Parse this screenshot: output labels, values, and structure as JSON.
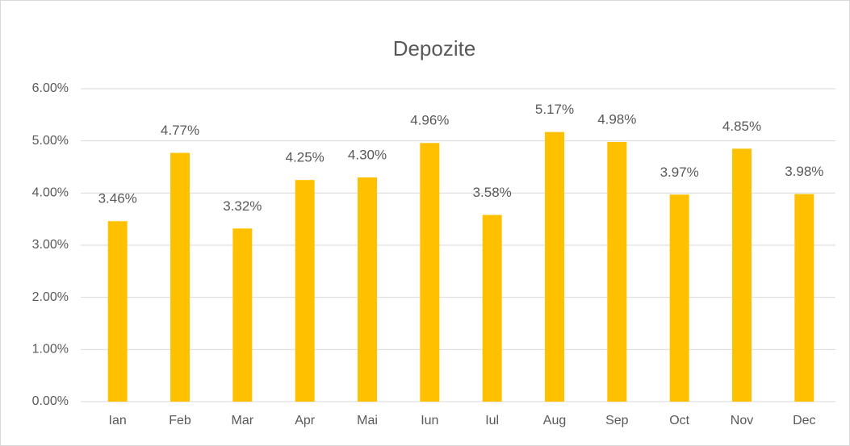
{
  "chart_data": {
    "type": "bar",
    "title": "Depozite",
    "categories": [
      "Ian",
      "Feb",
      "Mar",
      "Apr",
      "Mai",
      "Iun",
      "Iul",
      "Aug",
      "Sep",
      "Oct",
      "Nov",
      "Dec"
    ],
    "values": [
      3.46,
      4.77,
      3.32,
      4.25,
      4.3,
      4.96,
      3.58,
      5.17,
      4.98,
      3.97,
      4.85,
      3.98
    ],
    "value_labels": [
      "3.46%",
      "4.77%",
      "3.32%",
      "4.25%",
      "4.30%",
      "4.96%",
      "3.58%",
      "5.17%",
      "4.98%",
      "3.97%",
      "4.85%",
      "3.98%"
    ],
    "color": "#ffc000",
    "ylim": [
      0,
      6
    ],
    "yticks": [
      {
        "value": 0,
        "label": "0.00%"
      },
      {
        "value": 1,
        "label": "1.00%"
      },
      {
        "value": 2,
        "label": "2.00%"
      },
      {
        "value": 3,
        "label": "3.00%"
      },
      {
        "value": 4,
        "label": "4.00%"
      },
      {
        "value": 5,
        "label": "5.00%"
      },
      {
        "value": 6,
        "label": "6.00%"
      }
    ],
    "grid": true
  }
}
